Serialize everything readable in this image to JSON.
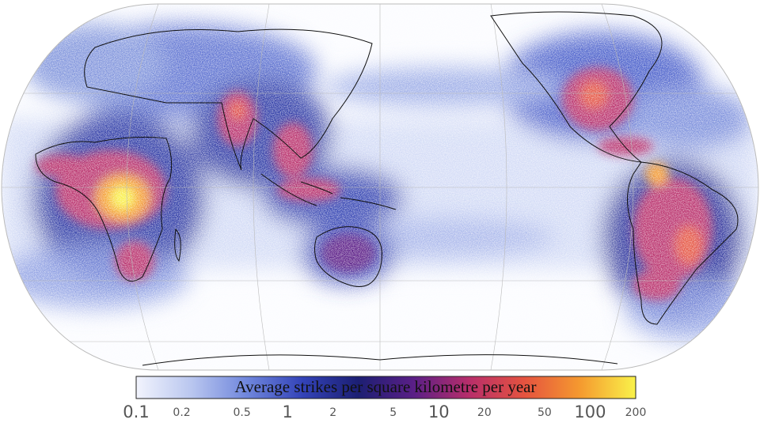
{
  "legend": {
    "title": "Average strikes per square kilometre per year",
    "scale": "log",
    "ticks": [
      0.1,
      0.2,
      0.5,
      1,
      2,
      5,
      10,
      20,
      50,
      100,
      200
    ],
    "colors": [
      "#f2f4fd",
      "#b9c6ef",
      "#6f86dc",
      "#3343b8",
      "#1c1f73",
      "#5a1f86",
      "#b82e6a",
      "#e5533f",
      "#f59a2f",
      "#f9f24a"
    ]
  }
}
